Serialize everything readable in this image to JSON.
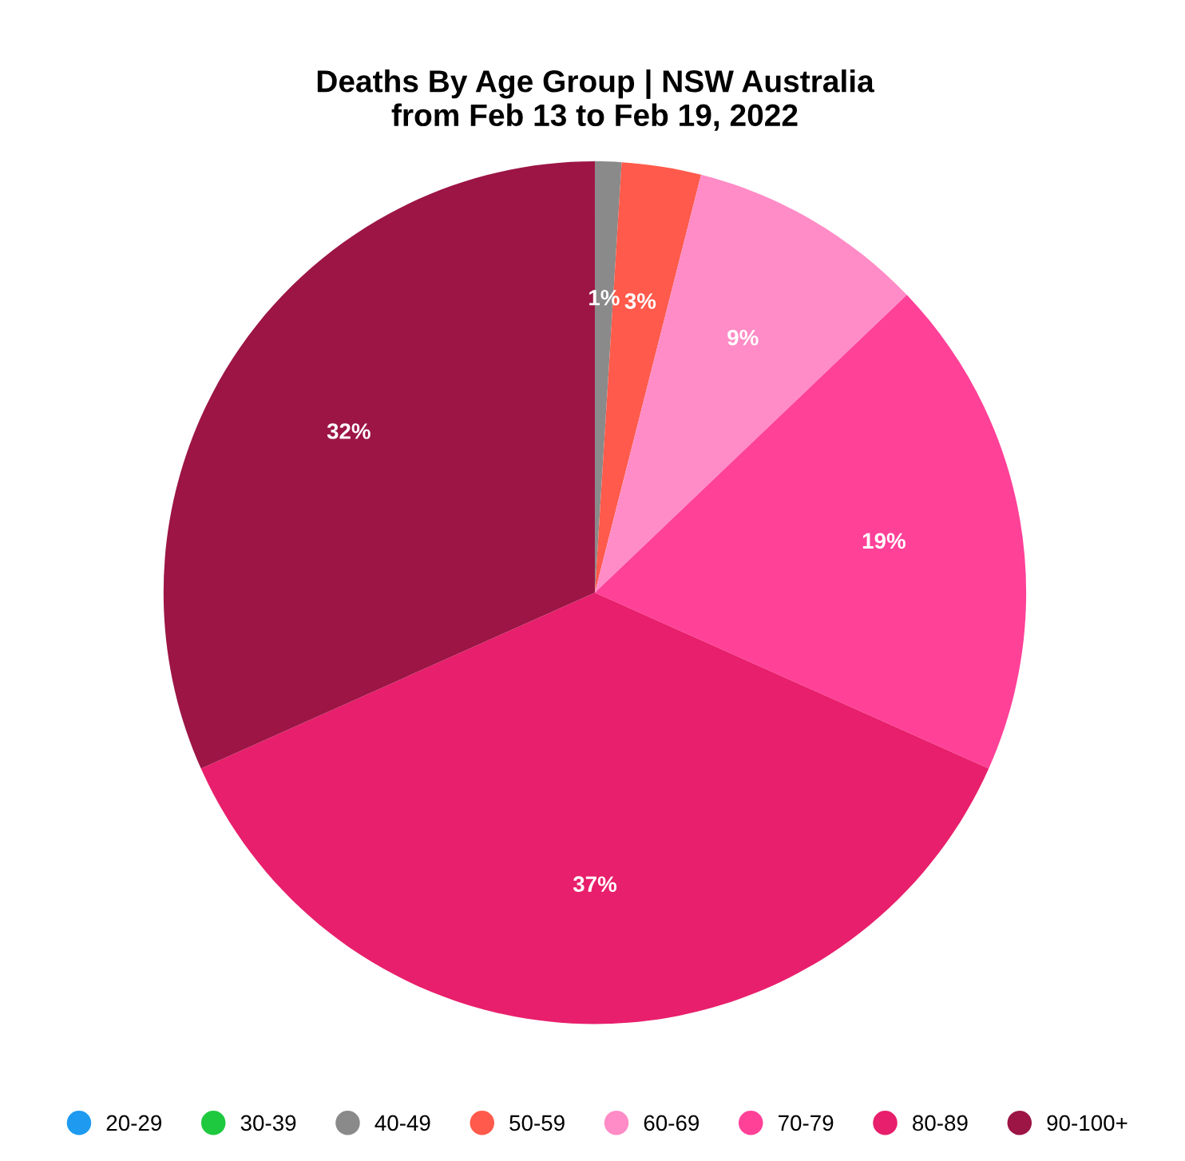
{
  "chart_data": {
    "type": "pie",
    "title": "Deaths By Age Group | NSW Australia\nfrom Feb 13 to Feb 19, 2022",
    "categories": [
      "20-29",
      "30-39",
      "40-49",
      "50-59",
      "60-69",
      "70-79",
      "80-89",
      "90-100+"
    ],
    "values": [
      0,
      0,
      1,
      3,
      9,
      19,
      37,
      32
    ],
    "colors": [
      "#1e9bf0",
      "#1fc93f",
      "#8a8a8a",
      "#ff5a4b",
      "#ff8cc6",
      "#ff4198",
      "#e81f6c",
      "#9c1545"
    ],
    "value_labels": [
      null,
      null,
      "1%",
      "3%",
      "9%",
      "19%",
      "37%",
      "32%"
    ],
    "legend": "bottom"
  }
}
